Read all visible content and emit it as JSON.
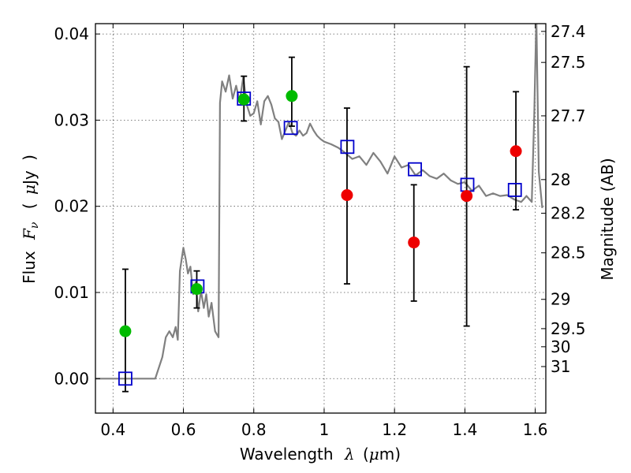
{
  "chart_data": {
    "type": "scatter",
    "xlabel_text": "Wavelength",
    "xlabel_unit": "(",
    "xlabel_unit_mu": "μ",
    "xlabel_unit_rest": "m)",
    "xlabel_symbol": "λ",
    "ylabel_text": "Flux",
    "ylabel_symbol_main": "F",
    "ylabel_symbol_sub": "ν",
    "ylabel_unit_open": "(",
    "ylabel_unit_mu": "μ",
    "ylabel_unit_rest": "Jy",
    "ylabel_unit_close": ")",
    "y2label": "Magnitude (AB)",
    "xlim": [
      0.35,
      1.63
    ],
    "ylim": [
      -0.004,
      0.0412
    ],
    "x_ticks": [
      0.4,
      0.6,
      0.8,
      1.0,
      1.2,
      1.4,
      1.6
    ],
    "x_tick_labels": [
      "0.4",
      "0.6",
      "0.8",
      "1",
      "1.2",
      "1.4",
      "1.6"
    ],
    "y_ticks": [
      0.0,
      0.01,
      0.02,
      0.03,
      0.04
    ],
    "y_tick_labels": [
      "0.00",
      "0.01",
      "0.02",
      "0.03",
      "0.04"
    ],
    "y2_ticks": [
      {
        "label": "27.4",
        "flux": 0.0403
      },
      {
        "label": "27.5",
        "flux": 0.0367
      },
      {
        "label": "27.7",
        "flux": 0.0305
      },
      {
        "label": "28",
        "flux": 0.0231
      },
      {
        "label": "28.2",
        "flux": 0.0192
      },
      {
        "label": "28.5",
        "flux": 0.0146
      },
      {
        "label": "29",
        "flux": 0.0092
      },
      {
        "label": "29.5",
        "flux": 0.0058
      },
      {
        "label": "30",
        "flux": 0.0037
      },
      {
        "label": "31",
        "flux": 0.0014
      }
    ],
    "grid": true,
    "colors": {
      "model": "#808080",
      "green": "#00bb00",
      "red": "#ee0000",
      "model_box": "#0000cc",
      "errorbar": "#000000"
    },
    "model_spectrum": {
      "x": [
        0.35,
        0.52,
        0.54,
        0.55,
        0.56,
        0.57,
        0.578,
        0.584,
        0.59,
        0.6,
        0.607,
        0.613,
        0.62,
        0.628,
        0.635,
        0.642,
        0.65,
        0.658,
        0.665,
        0.672,
        0.68,
        0.69,
        0.7,
        0.704,
        0.71,
        0.72,
        0.73,
        0.74,
        0.75,
        0.76,
        0.77,
        0.78,
        0.79,
        0.8,
        0.81,
        0.82,
        0.83,
        0.84,
        0.85,
        0.86,
        0.87,
        0.88,
        0.89,
        0.9,
        0.91,
        0.92,
        0.93,
        0.94,
        0.95,
        0.96,
        0.97,
        0.98,
        0.99,
        1.0,
        1.02,
        1.04,
        1.06,
        1.08,
        1.1,
        1.12,
        1.14,
        1.16,
        1.18,
        1.2,
        1.22,
        1.24,
        1.26,
        1.28,
        1.3,
        1.32,
        1.34,
        1.36,
        1.38,
        1.4,
        1.42,
        1.44,
        1.46,
        1.48,
        1.5,
        1.52,
        1.54,
        1.56,
        1.575,
        1.59,
        1.597,
        1.603,
        1.61,
        1.62
      ],
      "y": [
        0.0,
        0.0,
        0.0025,
        0.0048,
        0.0055,
        0.0048,
        0.006,
        0.0045,
        0.0125,
        0.0152,
        0.0138,
        0.0122,
        0.013,
        0.0098,
        0.0112,
        0.0078,
        0.0102,
        0.0082,
        0.0098,
        0.0072,
        0.0088,
        0.0055,
        0.0048,
        0.032,
        0.0345,
        0.0333,
        0.0352,
        0.0325,
        0.034,
        0.0322,
        0.035,
        0.0318,
        0.0305,
        0.0308,
        0.0322,
        0.0295,
        0.0322,
        0.0328,
        0.0318,
        0.0302,
        0.0298,
        0.0278,
        0.0288,
        0.0298,
        0.0285,
        0.0282,
        0.0288,
        0.0282,
        0.0285,
        0.0296,
        0.0288,
        0.0282,
        0.0278,
        0.0275,
        0.0272,
        0.0268,
        0.0262,
        0.0255,
        0.0258,
        0.0248,
        0.0262,
        0.0252,
        0.0238,
        0.0258,
        0.0245,
        0.0248,
        0.0236,
        0.0242,
        0.0235,
        0.0232,
        0.0238,
        0.023,
        0.0226,
        0.0228,
        0.0218,
        0.0224,
        0.0212,
        0.0215,
        0.0212,
        0.0213,
        0.0208,
        0.0205,
        0.0212,
        0.0205,
        0.0305,
        0.042,
        0.024,
        0.0198
      ]
    },
    "green_points": [
      {
        "x": 0.435,
        "y": 0.0055,
        "ylo": -0.0015,
        "yhi": 0.0127
      },
      {
        "x": 0.638,
        "y": 0.0104,
        "ylo": 0.0082,
        "yhi": 0.0125
      },
      {
        "x": 0.772,
        "y": 0.0324,
        "ylo": 0.0299,
        "yhi": 0.0351
      },
      {
        "x": 0.908,
        "y": 0.0328,
        "ylo": 0.0293,
        "yhi": 0.0373
      }
    ],
    "red_points": [
      {
        "x": 1.065,
        "y": 0.0213,
        "ylo": 0.011,
        "yhi": 0.0314
      },
      {
        "x": 1.255,
        "y": 0.0158,
        "ylo": 0.009,
        "yhi": 0.0225
      },
      {
        "x": 1.405,
        "y": 0.0212,
        "ylo": 0.0061,
        "yhi": 0.0362
      },
      {
        "x": 1.545,
        "y": 0.0264,
        "ylo": 0.0196,
        "yhi": 0.0333
      }
    ],
    "model_boxes": [
      {
        "x": 0.435,
        "y": 0.0
      },
      {
        "x": 0.64,
        "y": 0.0107
      },
      {
        "x": 0.772,
        "y": 0.0325
      },
      {
        "x": 0.905,
        "y": 0.0291
      },
      {
        "x": 1.066,
        "y": 0.0269
      },
      {
        "x": 1.258,
        "y": 0.0243
      },
      {
        "x": 1.407,
        "y": 0.0225
      },
      {
        "x": 1.542,
        "y": 0.0219
      }
    ]
  }
}
